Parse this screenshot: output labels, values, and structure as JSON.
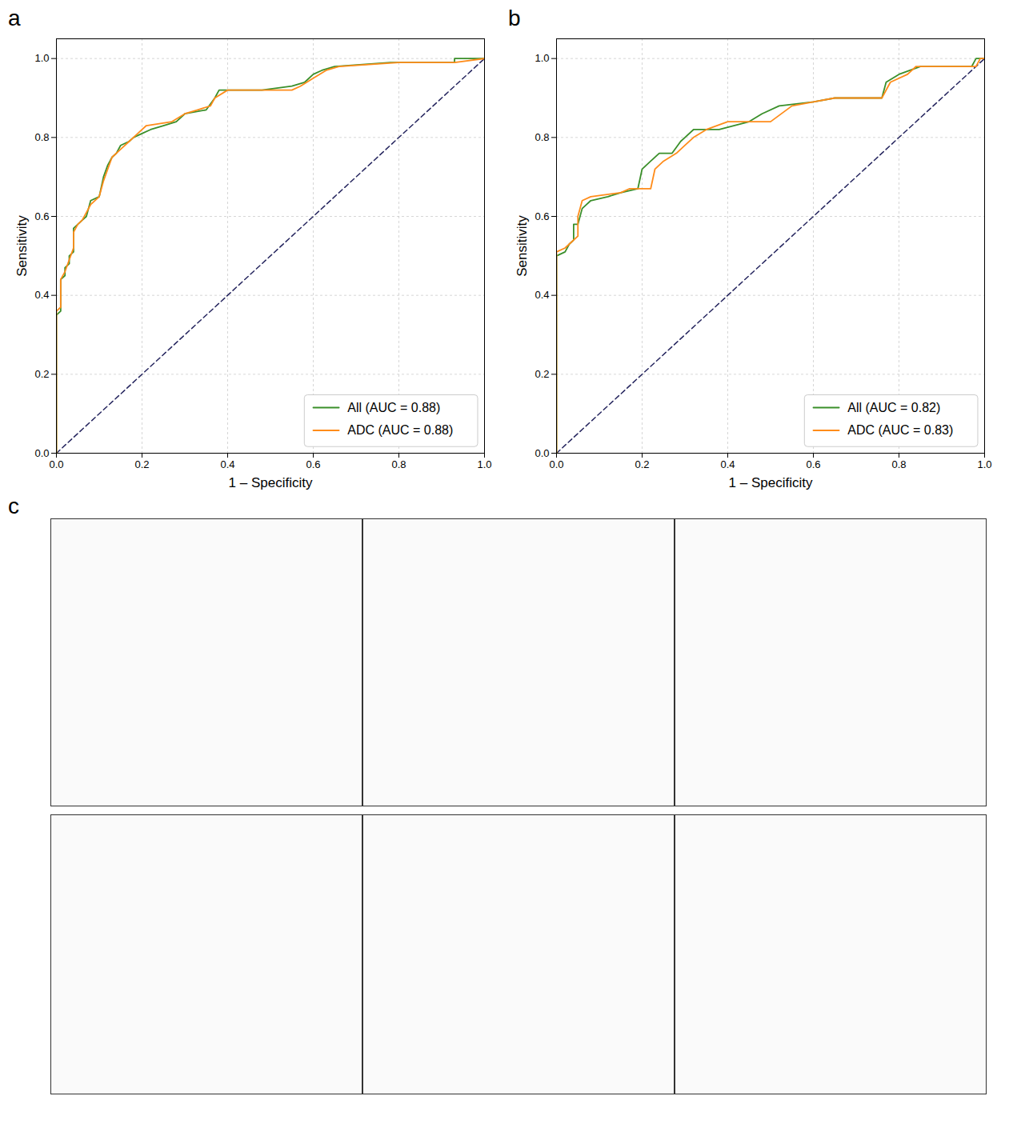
{
  "chart_data": [
    {
      "type": "line",
      "panel": "a",
      "xlabel": "1 – Specificity",
      "ylabel": "Sensitivity",
      "xlim": [
        0,
        1
      ],
      "ylim": [
        0,
        1.05
      ],
      "xticks": [
        {
          "value": 0,
          "label": "0.0"
        },
        {
          "value": 0.2,
          "label": "0.2"
        },
        {
          "value": 0.4,
          "label": "0.4"
        },
        {
          "value": 0.6,
          "label": "0.6"
        },
        {
          "value": 0.8,
          "label": "0.8"
        },
        {
          "value": 1,
          "label": "1.0"
        }
      ],
      "yticks": [
        {
          "value": 0,
          "label": "0.0"
        },
        {
          "value": 0.2,
          "label": "0.2"
        },
        {
          "value": 0.4,
          "label": "0.4"
        },
        {
          "value": 0.6,
          "label": "0.6"
        },
        {
          "value": 0.8,
          "label": "0.8"
        },
        {
          "value": 1,
          "label": "1.0"
        }
      ],
      "grid": true,
      "legend": "bottom-right",
      "reference_line": {
        "x": [
          0,
          1
        ],
        "values": [
          0,
          1
        ],
        "color": "#25255e",
        "line_style": "dashed"
      },
      "series": [
        {
          "name": "All (AUC = 0.88)",
          "color": "#3a8f2a",
          "x": [
            0,
            0,
            0.01,
            0.01,
            0.02,
            0.02,
            0.03,
            0.03,
            0.04,
            0.04,
            0.05,
            0.06,
            0.07,
            0.08,
            0.1,
            0.11,
            0.12,
            0.13,
            0.14,
            0.15,
            0.17,
            0.18,
            0.2,
            0.22,
            0.25,
            0.28,
            0.3,
            0.35,
            0.37,
            0.38,
            0.48,
            0.55,
            0.58,
            0.6,
            0.62,
            0.65,
            0.78,
            0.93,
            0.93,
            1
          ],
          "values": [
            0,
            0.35,
            0.36,
            0.44,
            0.45,
            0.47,
            0.48,
            0.5,
            0.51,
            0.57,
            0.58,
            0.59,
            0.6,
            0.64,
            0.65,
            0.7,
            0.73,
            0.75,
            0.76,
            0.78,
            0.79,
            0.8,
            0.81,
            0.82,
            0.83,
            0.84,
            0.86,
            0.87,
            0.9,
            0.92,
            0.92,
            0.93,
            0.94,
            0.96,
            0.97,
            0.98,
            0.99,
            0.99,
            1,
            1
          ]
        },
        {
          "name": "ADC (AUC = 0.88)",
          "color": "#ff8c1a",
          "x": [
            0,
            0,
            0.01,
            0.01,
            0.02,
            0.03,
            0.04,
            0.04,
            0.05,
            0.06,
            0.07,
            0.08,
            0.1,
            0.11,
            0.12,
            0.13,
            0.15,
            0.17,
            0.19,
            0.21,
            0.27,
            0.3,
            0.33,
            0.36,
            0.37,
            0.4,
            0.55,
            0.57,
            0.6,
            0.63,
            0.66,
            0.8,
            0.93,
            1
          ],
          "values": [
            0,
            0.36,
            0.37,
            0.44,
            0.46,
            0.49,
            0.52,
            0.56,
            0.58,
            0.59,
            0.61,
            0.63,
            0.65,
            0.69,
            0.72,
            0.75,
            0.77,
            0.79,
            0.81,
            0.83,
            0.84,
            0.86,
            0.87,
            0.88,
            0.9,
            0.92,
            0.92,
            0.93,
            0.95,
            0.97,
            0.98,
            0.99,
            0.99,
            1
          ]
        }
      ]
    },
    {
      "type": "line",
      "panel": "b",
      "xlabel": "1 – Specificity",
      "ylabel": "Sensitivity",
      "xlim": [
        0,
        1
      ],
      "ylim": [
        0,
        1.05
      ],
      "xticks": [
        {
          "value": 0,
          "label": "0.0"
        },
        {
          "value": 0.2,
          "label": "0.2"
        },
        {
          "value": 0.4,
          "label": "0.4"
        },
        {
          "value": 0.6,
          "label": "0.6"
        },
        {
          "value": 0.8,
          "label": "0.8"
        },
        {
          "value": 1,
          "label": "1.0"
        }
      ],
      "yticks": [
        {
          "value": 0,
          "label": "0.0"
        },
        {
          "value": 0.2,
          "label": "0.2"
        },
        {
          "value": 0.4,
          "label": "0.4"
        },
        {
          "value": 0.6,
          "label": "0.6"
        },
        {
          "value": 0.8,
          "label": "0.8"
        },
        {
          "value": 1,
          "label": "1.0"
        }
      ],
      "grid": true,
      "legend": "bottom-right",
      "reference_line": {
        "x": [
          0,
          1
        ],
        "values": [
          0,
          1
        ],
        "color": "#25255e",
        "line_style": "dashed"
      },
      "series": [
        {
          "name": "All (AUC = 0.82)",
          "color": "#3a8f2a",
          "x": [
            0,
            0,
            0.02,
            0.03,
            0.04,
            0.04,
            0.05,
            0.06,
            0.08,
            0.12,
            0.15,
            0.19,
            0.2,
            0.22,
            0.24,
            0.27,
            0.29,
            0.3,
            0.32,
            0.38,
            0.45,
            0.48,
            0.52,
            0.6,
            0.65,
            0.76,
            0.77,
            0.8,
            0.85,
            0.97,
            0.98,
            1
          ],
          "values": [
            0,
            0.5,
            0.51,
            0.53,
            0.54,
            0.58,
            0.58,
            0.62,
            0.64,
            0.65,
            0.66,
            0.67,
            0.72,
            0.74,
            0.76,
            0.76,
            0.79,
            0.8,
            0.82,
            0.82,
            0.84,
            0.86,
            0.88,
            0.89,
            0.9,
            0.9,
            0.94,
            0.96,
            0.98,
            0.98,
            1,
            1
          ]
        },
        {
          "name": "ADC (AUC = 0.83)",
          "color": "#ff8c1a",
          "x": [
            0,
            0,
            0.02,
            0.03,
            0.05,
            0.05,
            0.06,
            0.08,
            0.15,
            0.17,
            0.22,
            0.23,
            0.25,
            0.28,
            0.3,
            0.32,
            0.35,
            0.4,
            0.5,
            0.55,
            0.6,
            0.65,
            0.76,
            0.78,
            0.82,
            0.84,
            0.98,
            0.99,
            1
          ],
          "values": [
            0,
            0.51,
            0.52,
            0.53,
            0.55,
            0.6,
            0.64,
            0.65,
            0.66,
            0.67,
            0.67,
            0.72,
            0.74,
            0.76,
            0.78,
            0.8,
            0.82,
            0.84,
            0.84,
            0.88,
            0.89,
            0.9,
            0.9,
            0.94,
            0.96,
            0.98,
            0.98,
            1,
            1
          ]
        }
      ]
    }
  ],
  "panel_c": {
    "label": "c"
  }
}
